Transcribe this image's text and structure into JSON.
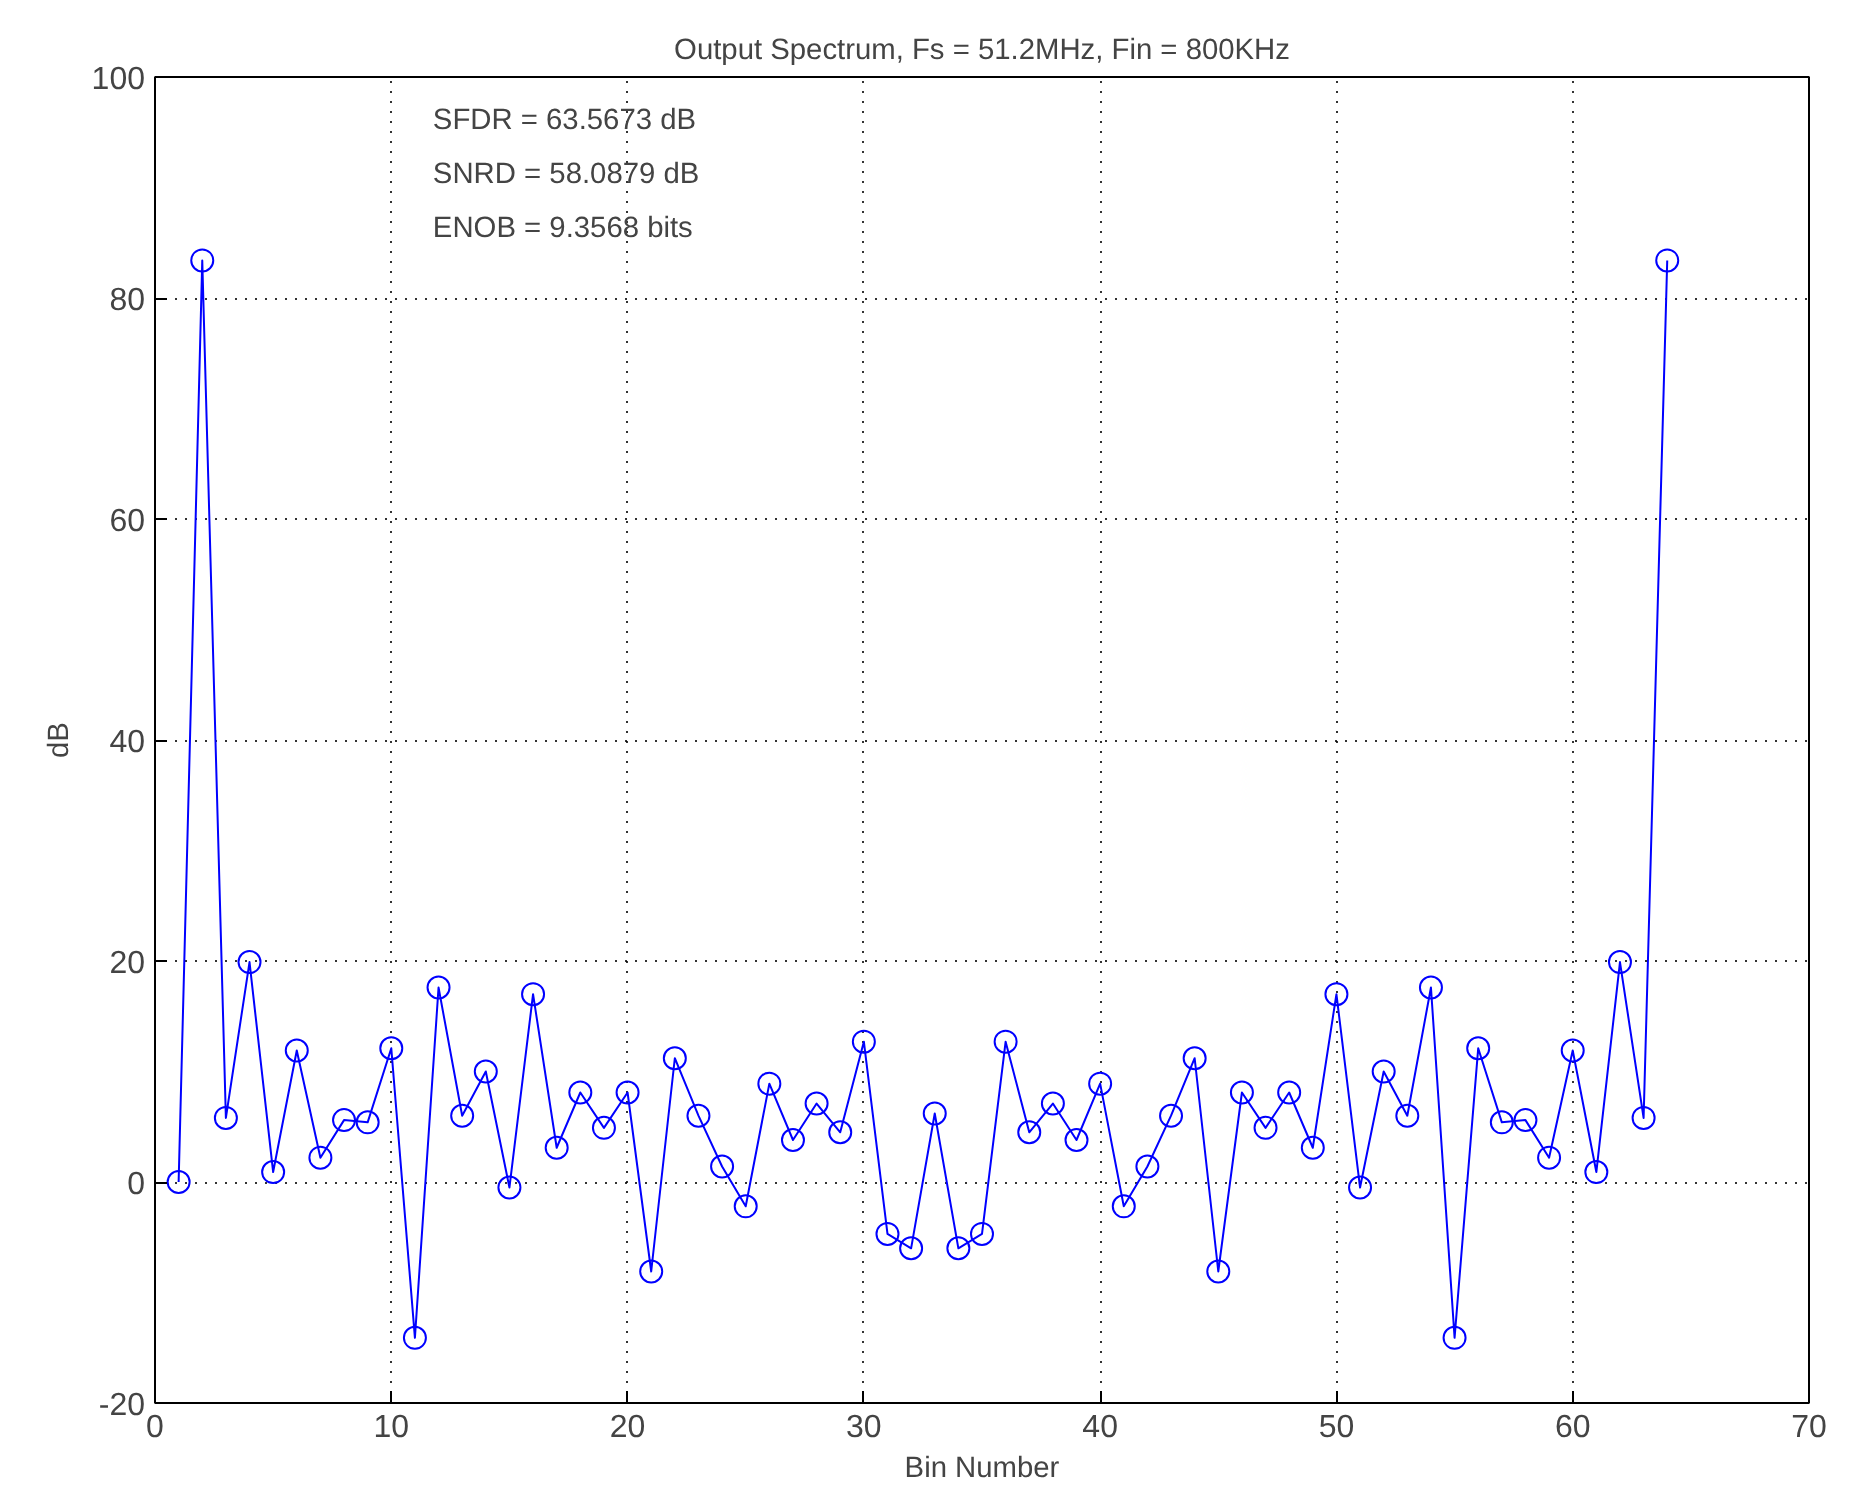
{
  "chart_data": {
    "type": "line",
    "title": "Output Spectrum, Fs = 51.2MHz, Fin = 800KHz",
    "xlabel": "Bin Number",
    "ylabel": "dB",
    "annotations": [
      "SFDR = 63.5673 dB",
      "SNRD = 58.0879 dB",
      "ENOB = 9.3568 bits"
    ],
    "x": [
      1,
      2,
      3,
      4,
      5,
      6,
      7,
      8,
      9,
      10,
      11,
      12,
      13,
      14,
      15,
      16,
      17,
      18,
      19,
      20,
      21,
      22,
      23,
      24,
      25,
      26,
      27,
      28,
      29,
      30,
      31,
      32,
      33,
      34,
      35,
      36,
      37,
      38,
      39,
      40,
      41,
      42,
      43,
      44,
      45,
      46,
      47,
      48,
      49,
      50,
      51,
      52,
      53,
      54,
      55,
      56,
      57,
      58,
      59,
      60,
      61,
      62,
      63,
      64
    ],
    "series": [
      {
        "color": "#0000ff",
        "values": [
          0,
          83.4,
          5.8,
          19.9,
          0.9,
          11.9,
          2.2,
          5.6,
          5.4,
          12.1,
          -14.1,
          17.6,
          6.0,
          10.0,
          -0.5,
          17.0,
          3.1,
          8.1,
          4.9,
          8.1,
          -8.1,
          11.2,
          6.0,
          1.4,
          -2.2,
          8.9,
          3.8,
          7.1,
          4.5,
          12.7,
          -4.7,
          -6.0,
          6.2,
          -6.0,
          -4.7,
          12.7,
          4.5,
          7.1,
          3.8,
          8.9,
          -2.2,
          1.4,
          6.0,
          11.2,
          -8.1,
          8.1,
          4.9,
          8.1,
          3.1,
          17.0,
          -0.5,
          10.0,
          6.0,
          17.6,
          -14.1,
          12.1,
          5.4,
          5.6,
          2.2,
          11.9,
          0.9,
          19.9,
          5.8,
          83.4
        ]
      }
    ],
    "xlim": [
      0,
      70
    ],
    "ylim": [
      -20,
      100
    ],
    "xticks": [
      0,
      10,
      20,
      30,
      40,
      50,
      60,
      70
    ],
    "yticks": [
      -20,
      0,
      20,
      40,
      60,
      80,
      100
    ],
    "grid": true,
    "marker": "circle",
    "line_style": "solid"
  }
}
